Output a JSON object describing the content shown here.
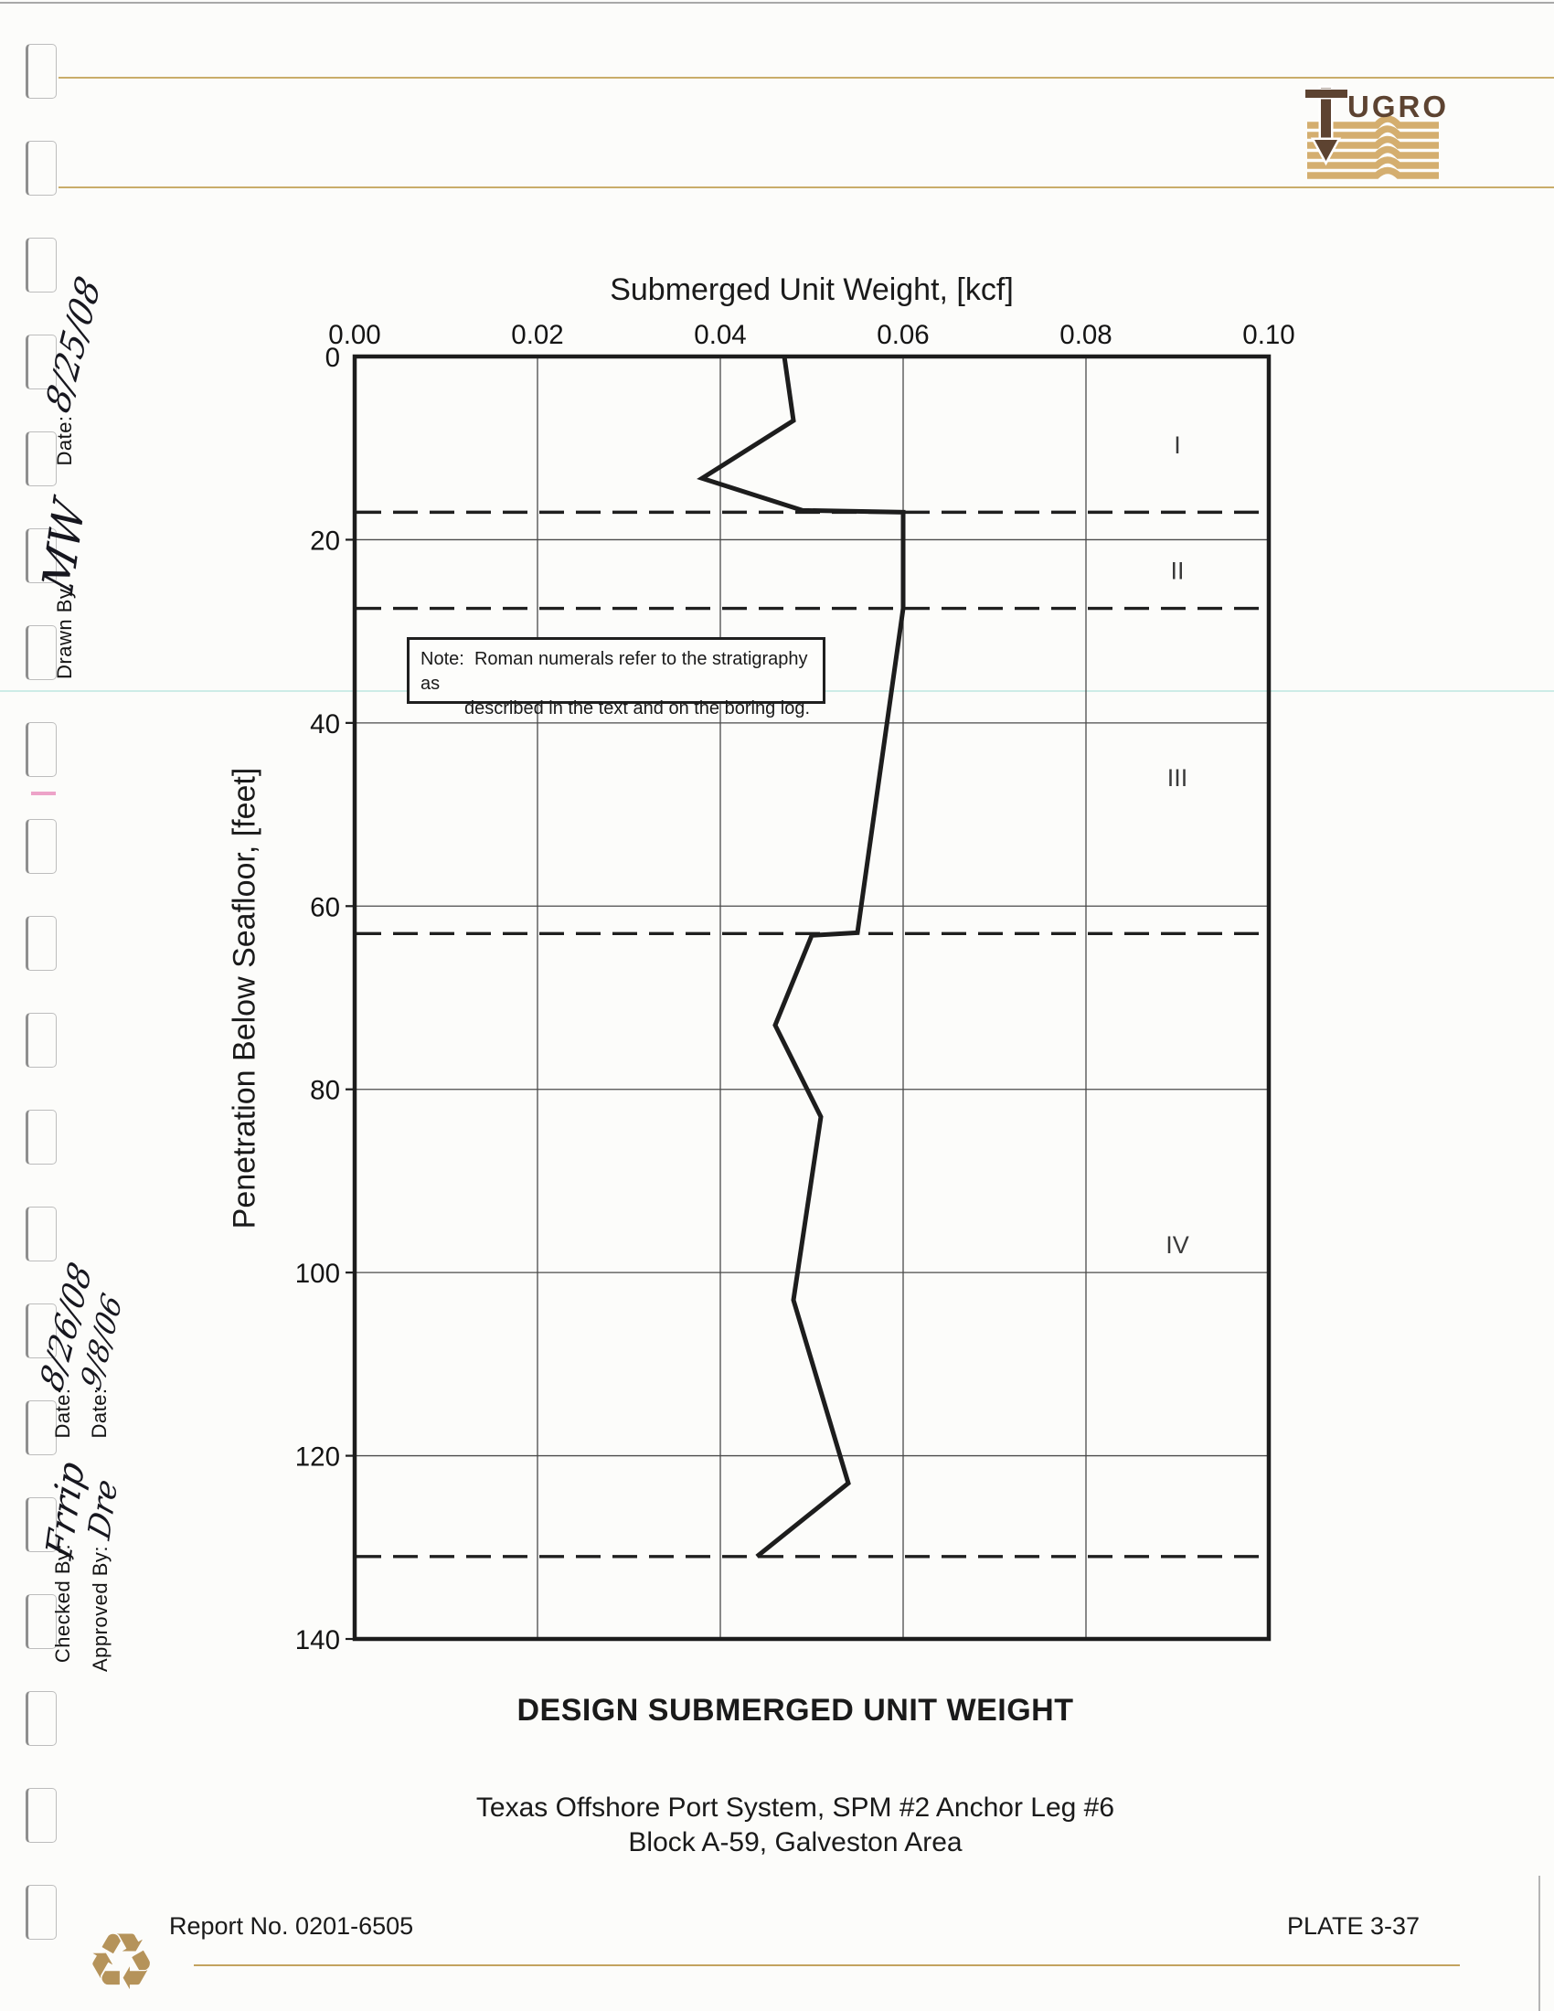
{
  "logo": {
    "company": "Fugro",
    "letters": "UGRO"
  },
  "margin": {
    "top": {
      "date_label": "Date:",
      "date_value": "8/25/08",
      "drawn_label": "Drawn By:",
      "drawn_value": "MW"
    },
    "bottom": {
      "checked_label": "Checked By:",
      "checked_value": "Frrip",
      "checked_date_label": "Date:",
      "checked_date_value": "8/26/08",
      "approved_label": "Approved By:",
      "approved_value": "Dre",
      "approved_date_label": "Date:",
      "approved_date_value": "9/8/06"
    }
  },
  "chart_data": {
    "type": "line",
    "title": "DESIGN SUBMERGED UNIT WEIGHT",
    "xlabel": "Submerged Unit Weight, [kcf]",
    "ylabel": "Penetration Below Seafloor, [feet]",
    "xlim": [
      0,
      0.1
    ],
    "ylim": [
      0,
      140
    ],
    "y_inverted": true,
    "grid": true,
    "x_ticks": [
      0,
      0.02,
      0.04,
      0.06,
      0.08,
      0.1
    ],
    "x_tick_labels": [
      "0.00",
      "0.02",
      "0.04",
      "0.06",
      "0.08",
      "0.10"
    ],
    "y_ticks": [
      0,
      20,
      40,
      60,
      80,
      100,
      120,
      140
    ],
    "series": [
      {
        "name": "Design submerged unit weight profile",
        "points": [
          [
            0.047,
            0
          ],
          [
            0.048,
            7
          ],
          [
            0.038,
            13.3
          ],
          [
            0.049,
            16.8
          ],
          [
            0.06,
            17.0
          ],
          [
            0.06,
            27.5
          ],
          [
            0.055,
            62.9
          ],
          [
            0.05,
            63.2
          ],
          [
            0.046,
            73
          ],
          [
            0.051,
            83
          ],
          [
            0.048,
            103
          ],
          [
            0.054,
            123
          ],
          [
            0.044,
            131
          ]
        ]
      }
    ],
    "stratum_boundaries_ft": [
      17.0,
      27.5,
      63.0,
      131.0
    ],
    "strata": [
      {
        "label": "I",
        "x": 0.09,
        "depth": 9.7
      },
      {
        "label": "II",
        "x": 0.09,
        "depth": 23.4
      },
      {
        "label": "III",
        "x": 0.09,
        "depth": 46.0
      },
      {
        "label": "IV",
        "x": 0.09,
        "depth": 97.0
      }
    ]
  },
  "note": {
    "prefix": "Note:",
    "line1": "Roman numerals refer to the stratigraphy as",
    "line2": "described in the text and on the boring log."
  },
  "titles": {
    "main": "DESIGN SUBMERGED UNIT WEIGHT",
    "subtitle_line1": "Texas Offshore Port System, SPM #2 Anchor Leg #6",
    "subtitle_line2": "Block A-59, Galveston Area"
  },
  "footer": {
    "report_no": "Report No. 0201-6505",
    "plate": "PLATE 3-37",
    "recycle_glyph": "♻"
  }
}
